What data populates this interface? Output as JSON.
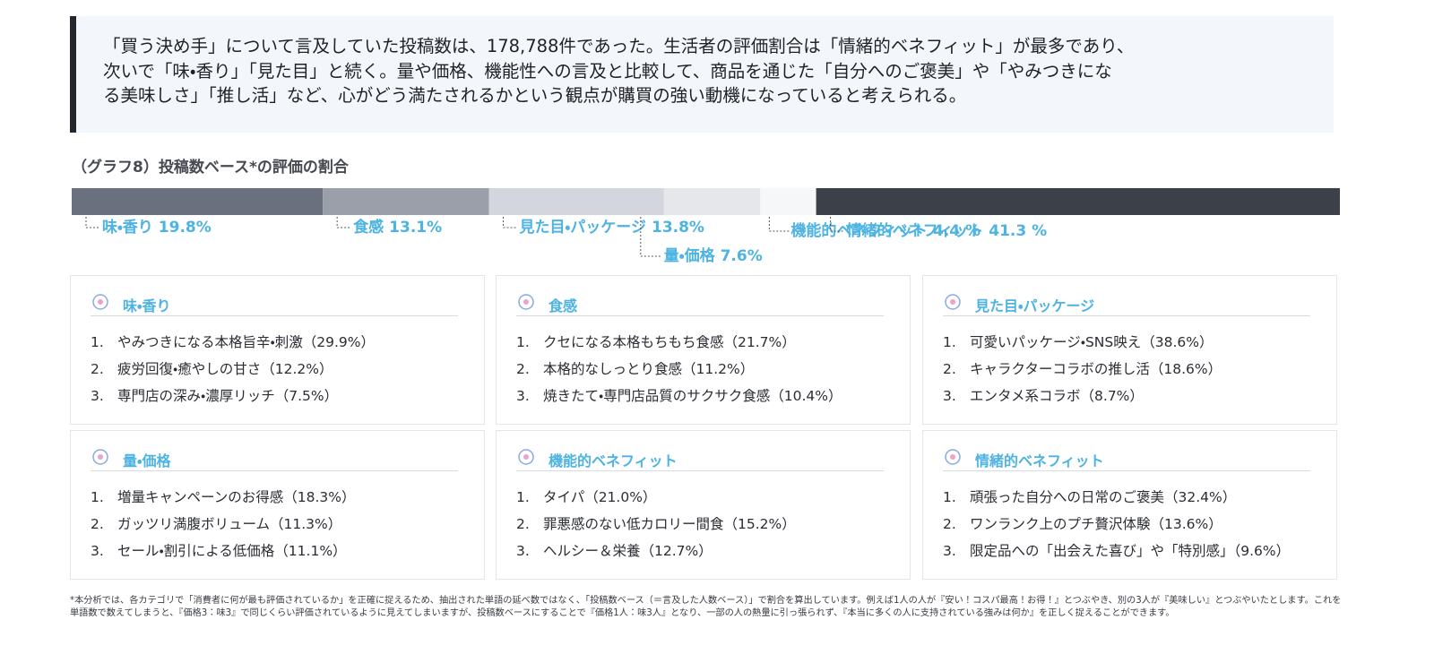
{
  "summary": [
    "「買う決め手」について言及していた投稿数は、178,788件であった。生活者の評価割合は「情緒的ベネフィット」が最多であり、",
    "次いで「味・香り」「見た目」と続く。量や価格、機能性への言及と比較して、商品を通じた「自分へのご褒美」や「やみつきにな",
    "る美味しさ」「推し活」など、心がどう満たされるかという観点が購買の強い動機になっていると考えられる。"
  ],
  "chart_data": {
    "type": "stacked-bar",
    "title": "（グラフ8）投稿数ベース*の評価の割合",
    "categories": [
      "味・香り",
      "食感",
      "見た目・パッケージ",
      "量・価格",
      "機能的ベネフィット",
      "情緒的ベネフィット"
    ],
    "values": [
      19.8,
      13.1,
      13.8,
      7.6,
      4.4,
      41.3
    ],
    "value_labels": [
      "19.8%",
      "13.1%",
      "13.8%",
      "7.6%",
      "4.4 %",
      "41.3 %"
    ],
    "colors": [
      "#6b707e",
      "#9b9fa9",
      "#d3d6dc",
      "#e5e7eb",
      "#f6f7f9",
      "#3c4049"
    ],
    "xlim": [
      0,
      100
    ]
  },
  "cards": [
    {
      "title": "味・香り",
      "items": [
        {
          "no": "1.",
          "text": "やみつきになる本格旨辛・刺激（29.9%）"
        },
        {
          "no": "2.",
          "text": "疲労回復・癒やしの甘さ（12.2%）"
        },
        {
          "no": "3.",
          "text": "専門店の深み・濃厚リッチ（7.5%）"
        }
      ]
    },
    {
      "title": "食感",
      "items": [
        {
          "no": "1.",
          "text": "クセになる本格もちもち食感（21.7%）"
        },
        {
          "no": "2.",
          "text": "本格的なしっとり食感（11.2%）"
        },
        {
          "no": "3.",
          "text": "焼きたて・専門店品質のサクサク食感（10.4%）"
        }
      ]
    },
    {
      "title": "見た目・パッケージ",
      "items": [
        {
          "no": "1.",
          "text": "可愛いパッケージ・SNS映え（38.6%）"
        },
        {
          "no": "2.",
          "text": "キャラクターコラボの推し活（18.6%）"
        },
        {
          "no": "3.",
          "text": "エンタメ系コラボ（8.7%）"
        }
      ]
    },
    {
      "title": "量・価格",
      "items": [
        {
          "no": "1.",
          "text": "増量キャンペーンのお得感（18.3%）"
        },
        {
          "no": "2.",
          "text": "ガッツリ満腹ボリューム（11.3%）"
        },
        {
          "no": "3.",
          "text": "セール・割引による低価格（11.1%）"
        }
      ]
    },
    {
      "title": "機能的ベネフィット",
      "items": [
        {
          "no": "1.",
          "text": "タイパ（21.0%）"
        },
        {
          "no": "2.",
          "text": "罪悪感のない低カロリー間食（15.2%）"
        },
        {
          "no": "3.",
          "text": "ヘルシー＆栄養（12.7%）"
        }
      ]
    },
    {
      "title": "情緒的ベネフィット",
      "items": [
        {
          "no": "1.",
          "text": "頑張った自分への日常のご褒美（32.4%）"
        },
        {
          "no": "2.",
          "text": "ワンランク上のプチ贅沢体験（13.6%）"
        },
        {
          "no": "3.",
          "text": "限定品への「出会えた喜び」や「特別感」（9.6%）"
        }
      ]
    }
  ],
  "footnote": "*本分析では、各カテゴリで「消費者に何が最も評価されているか」を正確に捉えるため、抽出された単語の延べ数ではなく、「投稿数ベース（＝言及した人数ベース）」で割合を算出しています。例えば1人の人が『安い！コスパ最高！お得！』とつぶやき、別の3人が『美味しい』とつぶやいたとします。これを単語数で数えてしまうと、『価格3：味3』で同じくらい評価されているように見えてしまいますが、投稿数ベースにすることで『価格1人：味3人』となり、一部の人の熱量に引っ張られず、『本当に多くの人に支持されている強みは何か』を正しく捉えることができます。"
}
